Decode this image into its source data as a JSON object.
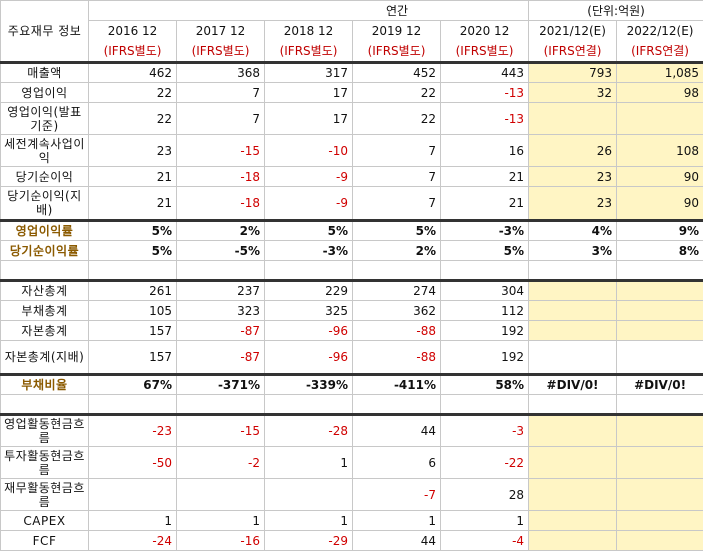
{
  "header": {
    "corner_label": "주요재무 정보",
    "section_label": "연간",
    "unit_label": "(단위:억원)",
    "columns": [
      {
        "year": "2016 12",
        "basis": "(IFRS별도)"
      },
      {
        "year": "2017 12",
        "basis": "(IFRS별도)"
      },
      {
        "year": "2018 12",
        "basis": "(IFRS별도)"
      },
      {
        "year": "2019 12",
        "basis": "(IFRS별도)"
      },
      {
        "year": "2020 12",
        "basis": "(IFRS별도)"
      },
      {
        "year": "2021/12(E)",
        "basis": "(IFRS연결)"
      },
      {
        "year": "2022/12(E)",
        "basis": "(IFRS연결)"
      }
    ]
  },
  "rows": {
    "revenue": {
      "label": "매출액",
      "v": [
        "462",
        "368",
        "317",
        "452",
        "443",
        "793",
        "1,085"
      ]
    },
    "op_income": {
      "label": "영업이익",
      "v": [
        "22",
        "7",
        "17",
        "22",
        "-13",
        "32",
        "98"
      ]
    },
    "op_income_pub": {
      "label": "영업이익(발표기준)",
      "v": [
        "22",
        "7",
        "17",
        "22",
        "-13",
        "",
        ""
      ]
    },
    "cont_pretax": {
      "label": "세전계속사업이익",
      "v": [
        "23",
        "-15",
        "-10",
        "7",
        "16",
        "26",
        "108"
      ]
    },
    "net_income": {
      "label": "당기순이익",
      "v": [
        "21",
        "-18",
        "-9",
        "7",
        "21",
        "23",
        "90"
      ]
    },
    "net_income_ctrl": {
      "label": "당기순이익(지배)",
      "v": [
        "21",
        "-18",
        "-9",
        "7",
        "21",
        "23",
        "90"
      ]
    },
    "op_margin": {
      "label": "영업이익률",
      "v": [
        "5%",
        "2%",
        "5%",
        "5%",
        "-3%",
        "4%",
        "9%"
      ]
    },
    "net_margin": {
      "label": "당기순이익률",
      "v": [
        "5%",
        "-5%",
        "-3%",
        "2%",
        "5%",
        "3%",
        "8%"
      ]
    },
    "assets": {
      "label": "자산총계",
      "v": [
        "261",
        "237",
        "229",
        "274",
        "304",
        "",
        ""
      ]
    },
    "liabilities": {
      "label": "부채총계",
      "v": [
        "105",
        "323",
        "325",
        "362",
        "112",
        "",
        ""
      ]
    },
    "equity": {
      "label": "자본총계",
      "v": [
        "157",
        "-87",
        "-96",
        "-88",
        "192",
        "",
        ""
      ]
    },
    "equity_ctrl": {
      "label": "자본총계(지배)",
      "v": [
        "157",
        "-87",
        "-96",
        "-88",
        "192",
        "",
        ""
      ]
    },
    "debt_ratio": {
      "label": "부채비율",
      "v": [
        "67%",
        "-371%",
        "-339%",
        "-411%",
        "58%",
        "#DIV/0!",
        "#DIV/0!"
      ]
    },
    "cf_op": {
      "label": "영업활동현금흐름",
      "v": [
        "-23",
        "-15",
        "-28",
        "44",
        "-3",
        "",
        ""
      ]
    },
    "cf_inv": {
      "label": "투자활동현금흐름",
      "v": [
        "-50",
        "-2",
        "1",
        "6",
        "-22",
        "",
        ""
      ]
    },
    "cf_fin": {
      "label": "재무활동현금흐름",
      "v": [
        "",
        "",
        "",
        "-7",
        "28",
        "",
        ""
      ]
    },
    "capex": {
      "label": "CAPEX",
      "v": [
        "1",
        "1",
        "1",
        "1",
        "1",
        "",
        ""
      ]
    },
    "fcf": {
      "label": "FCF",
      "v": [
        "-24",
        "-16",
        "-29",
        "44",
        "-4",
        "",
        ""
      ]
    }
  },
  "colors": {
    "negative": "#d00000",
    "estimate_bg": "#fff5c4",
    "ratio_label": "#8b5a00",
    "ifrs": "#c00000"
  }
}
